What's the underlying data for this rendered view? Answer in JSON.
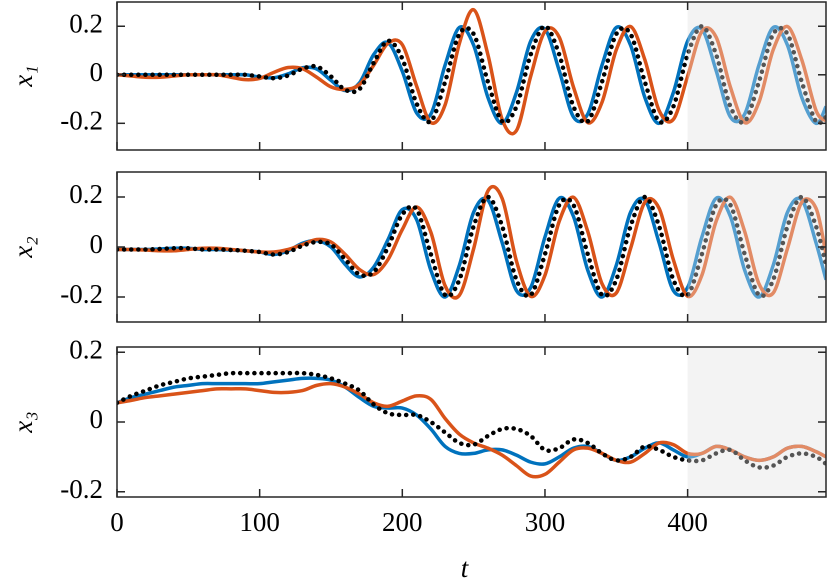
{
  "chart_data": [
    {
      "type": "line",
      "ylabel": "x₁",
      "x": [
        0,
        10,
        20,
        30,
        40,
        50,
        60,
        70,
        80,
        90,
        100,
        110,
        120,
        130,
        140,
        150,
        160,
        170,
        180,
        190,
        200,
        210,
        220,
        230,
        240,
        250,
        260,
        270,
        280,
        290,
        300,
        310,
        320,
        330,
        340,
        350,
        360,
        370,
        380,
        390,
        400,
        410,
        420,
        430,
        440,
        450,
        460,
        470,
        480,
        490,
        497
      ],
      "xlim": [
        0,
        497
      ],
      "ylim": [
        -0.31,
        0.3
      ],
      "yticks": [
        -0.2,
        0,
        0.2
      ],
      "shade_x": [
        400,
        497
      ],
      "series": [
        {
          "color": "#0072bd",
          "style": "solid",
          "values": [
            0,
            0,
            0,
            0,
            0,
            0,
            0,
            0,
            0,
            0,
            -0.009,
            -0.012,
            0.004,
            0.029,
            0.024,
            -0.023,
            -0.065,
            -0.033,
            0.084,
            0.132,
            0.014,
            -0.157,
            -0.162,
            0.04,
            0.195,
            0.122,
            -0.093,
            -0.2,
            -0.073,
            0.139,
            0.188,
            0.017,
            -0.174,
            -0.162,
            0.04,
            0.195,
            0.122,
            -0.093,
            -0.2,
            -0.073,
            0.139,
            0.188,
            0.017,
            -0.174,
            -0.162,
            0.04,
            0.195,
            0.122,
            -0.093,
            -0.2,
            -0.131
          ]
        },
        {
          "color": "#d95319",
          "style": "solid",
          "values": [
            0,
            -0.005,
            -0.01,
            -0.01,
            -0.005,
            0,
            0,
            0,
            -0.01,
            -0.02,
            -0.015,
            0.01,
            0.03,
            0.025,
            -0.01,
            -0.05,
            -0.06,
            -0.04,
            0.04,
            0.13,
            0.124,
            -0.046,
            -0.197,
            -0.124,
            0.129,
            0.268,
            0.083,
            -0.184,
            -0.23,
            -0.006,
            0.179,
            0.155,
            -0.051,
            -0.197,
            -0.113,
            0.103,
            0.199,
            0.062,
            -0.147,
            -0.184,
            -0.006,
            0.179,
            0.155,
            -0.051,
            -0.197,
            -0.113,
            0.103,
            0.199,
            0.062,
            -0.147,
            -0.19
          ]
        },
        {
          "color": "#000000",
          "style": "dotted",
          "values": [
            0,
            0,
            0,
            0,
            0,
            0,
            0,
            0,
            0,
            0,
            -0.007,
            -0.014,
            -0.003,
            0.025,
            0.034,
            -0.007,
            -0.062,
            -0.059,
            0.05,
            0.14,
            0.066,
            -0.118,
            -0.192,
            -0.029,
            0.168,
            0.168,
            -0.029,
            -0.192,
            -0.131,
            0.083,
            0.2,
            0.083,
            -0.131,
            -0.192,
            -0.029,
            0.168,
            0.168,
            -0.029,
            -0.192,
            -0.131,
            0.083,
            0.2,
            0.083,
            -0.131,
            -0.192,
            -0.029,
            0.168,
            0.168,
            -0.029,
            -0.192,
            -0.174
          ]
        }
      ]
    },
    {
      "type": "line",
      "ylabel": "x₂",
      "x": [
        0,
        10,
        20,
        30,
        40,
        50,
        60,
        70,
        80,
        90,
        100,
        110,
        120,
        130,
        140,
        150,
        160,
        170,
        180,
        190,
        200,
        210,
        220,
        230,
        240,
        250,
        260,
        270,
        280,
        290,
        300,
        310,
        320,
        330,
        340,
        350,
        360,
        370,
        380,
        390,
        400,
        410,
        420,
        430,
        440,
        450,
        460,
        470,
        480,
        490,
        497
      ],
      "xlim": [
        0,
        497
      ],
      "ylim": [
        -0.3,
        0.3
      ],
      "yticks": [
        -0.2,
        0,
        0.2
      ],
      "shade_x": [
        400,
        497
      ],
      "series": [
        {
          "color": "#0072bd",
          "style": "solid",
          "values": [
            -0.01,
            -0.01,
            -0.01,
            -0.008,
            -0.005,
            -0.005,
            -0.01,
            -0.01,
            -0.012,
            -0.015,
            -0.02,
            -0.03,
            -0.015,
            0.015,
            0.025,
            0,
            -0.07,
            -0.12,
            -0.08,
            0.03,
            0.15,
            0.11,
            -0.093,
            -0.2,
            -0.073,
            0.139,
            0.188,
            0.017,
            -0.174,
            -0.162,
            0.04,
            0.195,
            0.122,
            -0.093,
            -0.2,
            -0.073,
            0.139,
            0.188,
            0.017,
            -0.174,
            -0.162,
            0.04,
            0.195,
            0.122,
            -0.093,
            -0.2,
            -0.073,
            0.139,
            0.188,
            0.017,
            -0.131
          ]
        },
        {
          "color": "#d95319",
          "style": "solid",
          "values": [
            -0.01,
            -0.01,
            -0.012,
            -0.015,
            -0.015,
            -0.01,
            -0.005,
            -0.005,
            -0.01,
            -0.015,
            -0.02,
            -0.02,
            -0.01,
            0.01,
            0.03,
            0.02,
            -0.03,
            -0.09,
            -0.11,
            -0.05,
            0.07,
            0.16,
            0.059,
            -0.155,
            -0.193,
            -0.007,
            0.224,
            0.194,
            -0.056,
            -0.197,
            -0.113,
            0.103,
            0.199,
            0.062,
            -0.147,
            -0.184,
            -0.006,
            0.179,
            0.155,
            -0.051,
            -0.197,
            -0.113,
            0.103,
            0.199,
            0.062,
            -0.147,
            -0.184,
            -0.006,
            0.179,
            0.155,
            -0.03
          ]
        },
        {
          "color": "#000000",
          "style": "dotted",
          "values": [
            -0.01,
            -0.01,
            -0.01,
            -0.008,
            -0.005,
            -0.005,
            -0.01,
            -0.01,
            -0.012,
            -0.015,
            -0.02,
            -0.03,
            -0.02,
            0.005,
            0.02,
            0.01,
            -0.05,
            -0.11,
            -0.1,
            0,
            0.13,
            0.151,
            -0.029,
            -0.192,
            -0.131,
            0.083,
            0.2,
            0.083,
            -0.131,
            -0.192,
            -0.029,
            0.168,
            0.168,
            -0.029,
            -0.192,
            -0.131,
            0.083,
            0.2,
            0.083,
            -0.131,
            -0.192,
            -0.029,
            0.168,
            0.168,
            -0.029,
            -0.192,
            -0.131,
            0.083,
            0.2,
            0.083,
            -0.072
          ]
        }
      ]
    },
    {
      "type": "line",
      "ylabel": "x₃",
      "xlabel": "t",
      "x": [
        0,
        10,
        20,
        30,
        40,
        50,
        60,
        70,
        80,
        90,
        100,
        110,
        120,
        130,
        140,
        150,
        160,
        170,
        180,
        190,
        200,
        210,
        220,
        230,
        240,
        250,
        260,
        270,
        280,
        290,
        300,
        310,
        320,
        330,
        340,
        350,
        360,
        370,
        380,
        390,
        400,
        410,
        420,
        430,
        440,
        450,
        460,
        470,
        480,
        490,
        497
      ],
      "xlim": [
        0,
        497
      ],
      "xticks": [
        0,
        100,
        200,
        300,
        400
      ],
      "ylim": [
        -0.215,
        0.215
      ],
      "yticks": [
        -0.2,
        0,
        0.2
      ],
      "shade_x": [
        400,
        497
      ],
      "series": [
        {
          "color": "#0072bd",
          "style": "solid",
          "values": [
            0.055,
            0.07,
            0.08,
            0.09,
            0.1,
            0.105,
            0.11,
            0.11,
            0.11,
            0.11,
            0.11,
            0.115,
            0.12,
            0.125,
            0.125,
            0.12,
            0.1,
            0.07,
            0.045,
            0.04,
            0.04,
            0.02,
            -0.02,
            -0.07,
            -0.09,
            -0.09,
            -0.08,
            -0.08,
            -0.095,
            -0.115,
            -0.12,
            -0.1,
            -0.075,
            -0.07,
            -0.09,
            -0.11,
            -0.1,
            -0.075,
            -0.06,
            -0.08,
            -0.1,
            -0.09,
            -0.07,
            -0.08,
            -0.1,
            -0.11,
            -0.1,
            -0.075,
            -0.07,
            -0.085,
            -0.1
          ]
        },
        {
          "color": "#d95319",
          "style": "solid",
          "values": [
            0.055,
            0.062,
            0.07,
            0.075,
            0.08,
            0.085,
            0.09,
            0.095,
            0.095,
            0.095,
            0.09,
            0.085,
            0.085,
            0.09,
            0.105,
            0.11,
            0.1,
            0.08,
            0.055,
            0.045,
            0.06,
            0.075,
            0.065,
            0.01,
            -0.035,
            -0.06,
            -0.075,
            -0.095,
            -0.125,
            -0.155,
            -0.15,
            -0.115,
            -0.08,
            -0.075,
            -0.09,
            -0.11,
            -0.115,
            -0.09,
            -0.06,
            -0.065,
            -0.09,
            -0.09,
            -0.07,
            -0.08,
            -0.1,
            -0.11,
            -0.1,
            -0.075,
            -0.07,
            -0.085,
            -0.1
          ]
        },
        {
          "color": "#000000",
          "style": "dotted",
          "values": [
            0.055,
            0.075,
            0.09,
            0.105,
            0.115,
            0.125,
            0.13,
            0.135,
            0.14,
            0.14,
            0.14,
            0.14,
            0.14,
            0.14,
            0.135,
            0.125,
            0.11,
            0.09,
            0.05,
            0.025,
            0.02,
            0.02,
            0,
            -0.03,
            -0.06,
            -0.065,
            -0.04,
            -0.02,
            -0.02,
            -0.04,
            -0.08,
            -0.075,
            -0.05,
            -0.06,
            -0.09,
            -0.11,
            -0.1,
            -0.07,
            -0.08,
            -0.1,
            -0.11,
            -0.11,
            -0.09,
            -0.08,
            -0.11,
            -0.13,
            -0.125,
            -0.1,
            -0.09,
            -0.1,
            -0.12
          ]
        }
      ]
    }
  ]
}
